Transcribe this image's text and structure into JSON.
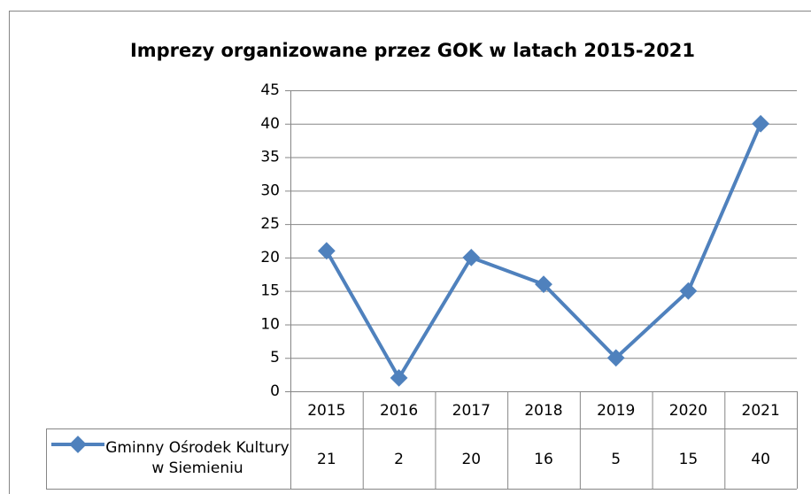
{
  "chart_data": {
    "type": "line",
    "title": "Imprezy organizowane przez GOK w latach 2015-2021",
    "categories": [
      "2015",
      "2016",
      "2017",
      "2018",
      "2019",
      "2020",
      "2021"
    ],
    "series": [
      {
        "name": "Gminny Ośrodek Kultury w Siemieniu",
        "color": "#4f81bd",
        "values": [
          21,
          2,
          20,
          16,
          5,
          15,
          40
        ]
      }
    ],
    "ylim": [
      0,
      45
    ],
    "yticks": [
      0,
      5,
      10,
      15,
      20,
      25,
      30,
      35,
      40,
      45
    ],
    "grid": true,
    "data_table": true
  }
}
